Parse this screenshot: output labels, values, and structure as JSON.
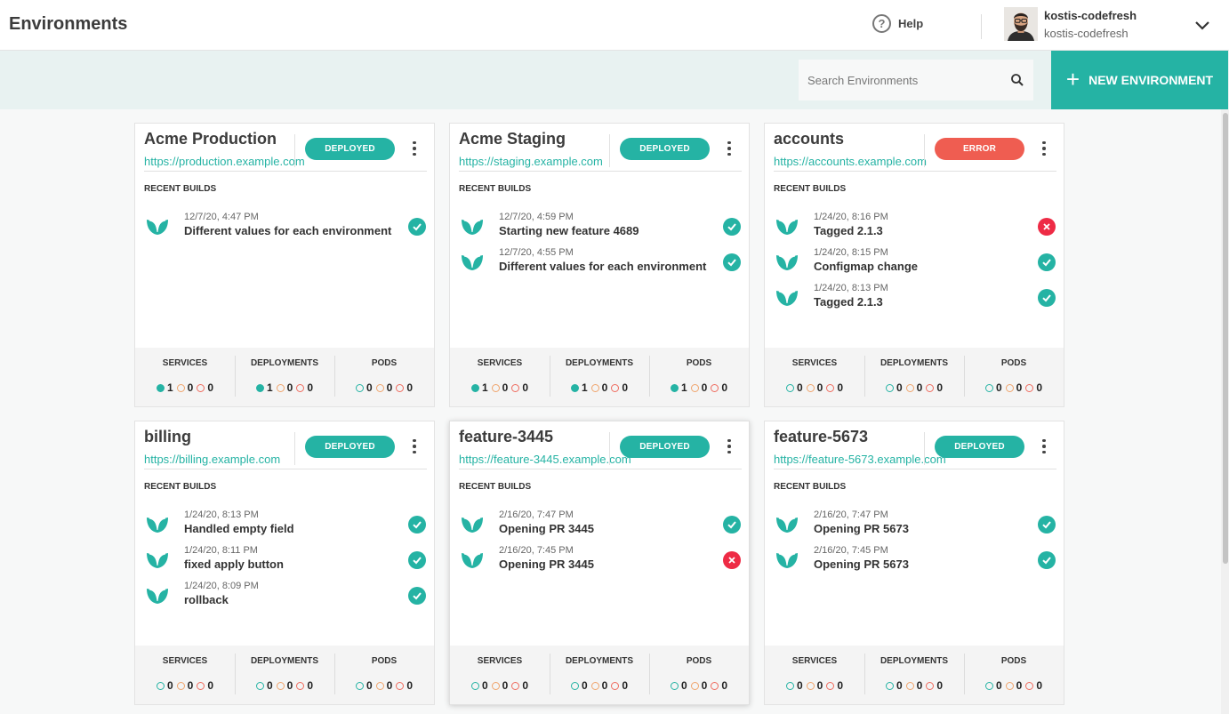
{
  "header": {
    "title": "Environments",
    "help_label": "Help",
    "user_name": "kostis-codefresh",
    "user_sub": "kostis-codefresh"
  },
  "toolbar": {
    "search_placeholder": "Search Environments",
    "new_env_label": "NEW ENVIRONMENT"
  },
  "labels": {
    "recent_builds": "RECENT BUILDS",
    "services": "SERVICES",
    "deployments": "DEPLOYMENTS",
    "pods": "PODS"
  },
  "colors": {
    "accent": "#25b3a4",
    "error": "#ef5d51",
    "fail": "#ee2b45"
  },
  "environments": [
    {
      "name": "Acme Production",
      "url": "https://production.example.com",
      "status": "DEPLOYED",
      "status_kind": "ok",
      "builds": [
        {
          "time": "12/7/20, 4:47 PM",
          "message": "Different values for each environment",
          "result": "ok"
        }
      ],
      "services": [
        "1",
        "0",
        "0"
      ],
      "deployments": [
        "1",
        "0",
        "0"
      ],
      "pods": [
        "0",
        "0",
        "0"
      ],
      "healthy_fill": [
        true,
        true,
        false
      ]
    },
    {
      "name": "Acme Staging",
      "url": "https://staging.example.com",
      "status": "DEPLOYED",
      "status_kind": "ok",
      "builds": [
        {
          "time": "12/7/20, 4:59 PM",
          "message": "Starting new feature 4689",
          "result": "ok"
        },
        {
          "time": "12/7/20, 4:55 PM",
          "message": "Different values for each environment",
          "result": "ok"
        }
      ],
      "services": [
        "1",
        "0",
        "0"
      ],
      "deployments": [
        "1",
        "0",
        "0"
      ],
      "pods": [
        "1",
        "0",
        "0"
      ],
      "healthy_fill": [
        true,
        true,
        true
      ]
    },
    {
      "name": "accounts",
      "url": "https://accounts.example.com",
      "status": "ERROR",
      "status_kind": "err",
      "builds": [
        {
          "time": "1/24/20, 8:16 PM",
          "message": "Tagged 2.1.3",
          "result": "err"
        },
        {
          "time": "1/24/20, 8:15 PM",
          "message": "Configmap change",
          "result": "ok"
        },
        {
          "time": "1/24/20, 8:13 PM",
          "message": "Tagged 2.1.3",
          "result": "ok"
        }
      ],
      "services": [
        "0",
        "0",
        "0"
      ],
      "deployments": [
        "0",
        "0",
        "0"
      ],
      "pods": [
        "0",
        "0",
        "0"
      ],
      "healthy_fill": [
        false,
        false,
        false
      ]
    },
    {
      "name": "billing",
      "url": "https://billing.example.com",
      "status": "DEPLOYED",
      "status_kind": "ok",
      "builds": [
        {
          "time": "1/24/20, 8:13 PM",
          "message": "Handled empty field",
          "result": "ok"
        },
        {
          "time": "1/24/20, 8:11 PM",
          "message": "fixed apply button",
          "result": "ok"
        },
        {
          "time": "1/24/20, 8:09 PM",
          "message": "rollback",
          "result": "ok"
        }
      ],
      "services": [
        "0",
        "0",
        "0"
      ],
      "deployments": [
        "0",
        "0",
        "0"
      ],
      "pods": [
        "0",
        "0",
        "0"
      ],
      "healthy_fill": [
        false,
        false,
        false
      ]
    },
    {
      "name": "feature-3445",
      "url": "https://feature-3445.example.com",
      "status": "DEPLOYED",
      "status_kind": "ok",
      "builds": [
        {
          "time": "2/16/20, 7:47 PM",
          "message": "Opening PR 3445",
          "result": "ok"
        },
        {
          "time": "2/16/20, 7:45 PM",
          "message": "Opening PR 3445",
          "result": "err"
        }
      ],
      "services": [
        "0",
        "0",
        "0"
      ],
      "deployments": [
        "0",
        "0",
        "0"
      ],
      "pods": [
        "0",
        "0",
        "0"
      ],
      "healthy_fill": [
        false,
        false,
        false
      ]
    },
    {
      "name": "feature-5673",
      "url": "https://feature-5673.example.com",
      "status": "DEPLOYED",
      "status_kind": "ok",
      "builds": [
        {
          "time": "2/16/20, 7:47 PM",
          "message": "Opening PR 5673",
          "result": "ok"
        },
        {
          "time": "2/16/20, 7:45 PM",
          "message": "Opening PR 5673",
          "result": "ok"
        }
      ],
      "services": [
        "0",
        "0",
        "0"
      ],
      "deployments": [
        "0",
        "0",
        "0"
      ],
      "pods": [
        "0",
        "0",
        "0"
      ],
      "healthy_fill": [
        false,
        false,
        false
      ]
    }
  ]
}
